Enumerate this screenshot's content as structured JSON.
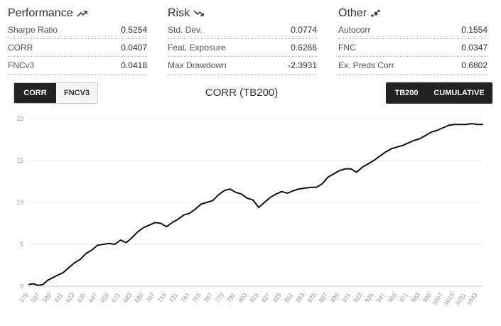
{
  "performance": {
    "title": "Performance",
    "icon": "trending-up-icon",
    "rows": [
      {
        "label": "Sharpe Ratio",
        "value": "0.5254"
      },
      {
        "label": "CORR",
        "value": "0.0407"
      },
      {
        "label": "FNCv3",
        "value": "0.0418"
      }
    ]
  },
  "risk": {
    "title": "Risk",
    "icon": "trending-down-icon",
    "rows": [
      {
        "label": "Std. Dev.",
        "value": "0.0774"
      },
      {
        "label": "Feat. Exposure",
        "value": "0.6266"
      },
      {
        "label": "Max Drawdown",
        "value": "-2.3931"
      }
    ]
  },
  "other": {
    "title": "Other",
    "icon": "scatter-dots-icon",
    "rows": [
      {
        "label": "Autocorr",
        "value": "0.1554"
      },
      {
        "label": "FNC",
        "value": "0.0347"
      },
      {
        "label": "Ex. Preds Corr",
        "value": "0.6802"
      }
    ]
  },
  "metric_toggle": {
    "options": [
      "CORR",
      "FNCV3"
    ],
    "active": "CORR"
  },
  "mode_toggle": {
    "options": [
      "TB200",
      "CUMULATIVE"
    ],
    "active": [
      "TB200",
      "CUMULATIVE"
    ]
  },
  "chart_title": "CORR (TB200)",
  "chart_data": {
    "type": "line",
    "title": "CORR (TB200)",
    "ylim": [
      0,
      20
    ],
    "yticks": [
      0,
      5,
      10,
      15,
      20
    ],
    "grid": true,
    "xlim": [
      575,
      1049
    ],
    "xticks": [
      575,
      587,
      599,
      611,
      623,
      635,
      647,
      659,
      671,
      683,
      695,
      707,
      719,
      731,
      743,
      755,
      767,
      779,
      791,
      803,
      815,
      827,
      839,
      851,
      863,
      875,
      887,
      899,
      911,
      923,
      935,
      947,
      959,
      971,
      983,
      995,
      1007,
      1019,
      1031,
      1043
    ],
    "series": [
      {
        "color": "#111111",
        "x": [
          575,
          580,
          585,
          590,
          595,
          600,
          605,
          611,
          617,
          623,
          629,
          635,
          641,
          647,
          653,
          659,
          665,
          671,
          677,
          683,
          689,
          695,
          701,
          707,
          713,
          719,
          725,
          731,
          737,
          743,
          749,
          755,
          761,
          767,
          773,
          779,
          785,
          791,
          797,
          803,
          809,
          815,
          821,
          827,
          833,
          839,
          845,
          851,
          857,
          863,
          869,
          875,
          881,
          887,
          893,
          899,
          905,
          911,
          917,
          923,
          929,
          935,
          941,
          947,
          953,
          959,
          965,
          971,
          977,
          983,
          989,
          995,
          1001,
          1007,
          1013,
          1019,
          1025,
          1031,
          1037,
          1043,
          1049
        ],
        "values": [
          0.2,
          0.3,
          0.1,
          0.2,
          0.7,
          1.0,
          1.3,
          1.6,
          2.2,
          2.8,
          3.2,
          3.9,
          4.3,
          4.9,
          5.0,
          5.1,
          5.0,
          5.5,
          5.2,
          5.8,
          6.5,
          7.0,
          7.3,
          7.6,
          7.5,
          7.1,
          7.6,
          8.0,
          8.5,
          8.7,
          9.2,
          9.8,
          10.0,
          10.2,
          10.9,
          11.4,
          11.6,
          11.2,
          11.0,
          10.5,
          10.3,
          9.4,
          10.0,
          10.6,
          11.0,
          11.3,
          11.1,
          11.4,
          11.6,
          11.7,
          11.8,
          11.8,
          12.2,
          13.0,
          13.4,
          13.8,
          14.0,
          14.0,
          13.6,
          14.2,
          14.6,
          15.0,
          15.5,
          16.0,
          16.4,
          16.6,
          16.8,
          17.1,
          17.4,
          17.6,
          18.0,
          18.4,
          18.6,
          18.9,
          19.2,
          19.3,
          19.3,
          19.3,
          19.4,
          19.3,
          19.3
        ]
      }
    ]
  }
}
